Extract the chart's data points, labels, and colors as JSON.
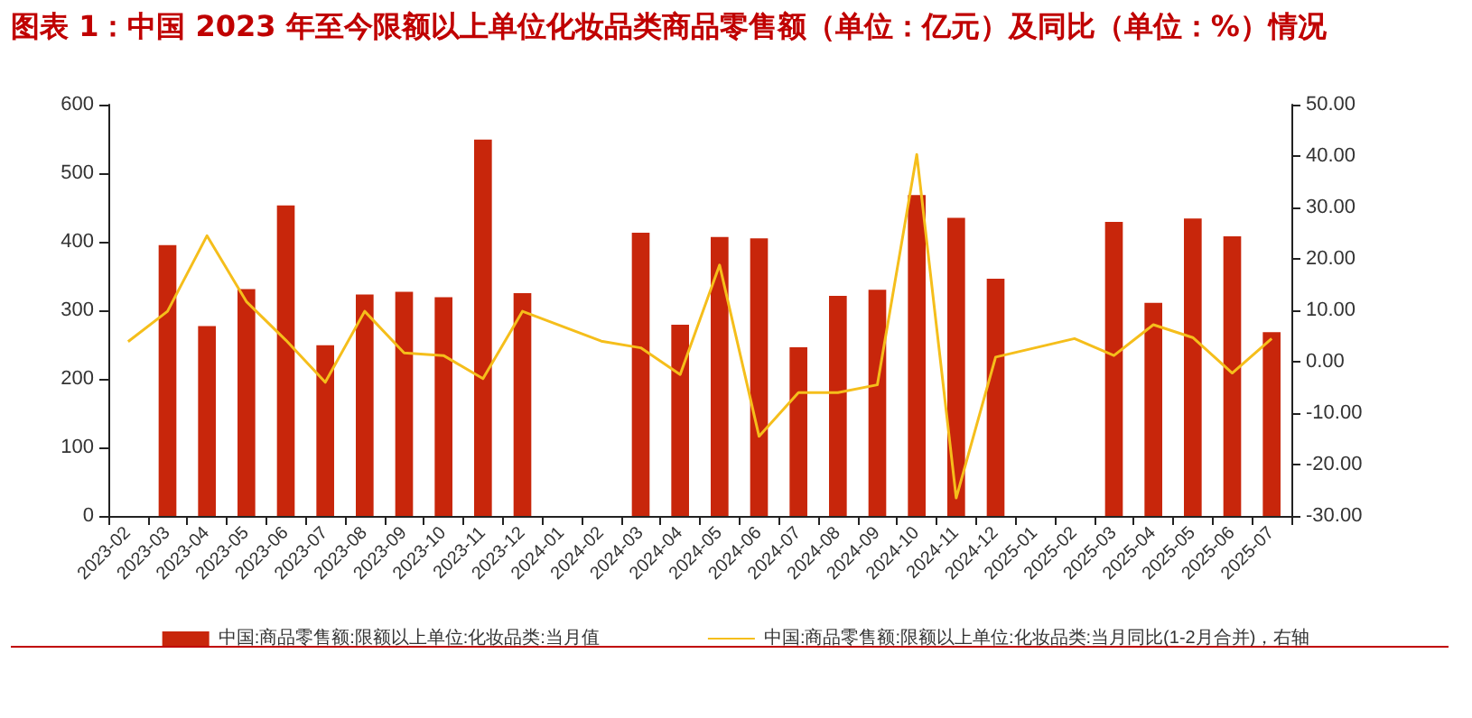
{
  "chart_data": {
    "type": "bar",
    "title": "图表 1：中国 2023 年至今限额以上单位化妆品类商品零售额（单位：亿元）及同比（单位：%）情况",
    "categories": [
      "2023-02",
      "2023-03",
      "2023-04",
      "2023-05",
      "2023-06",
      "2023-07",
      "2023-08",
      "2023-09",
      "2023-10",
      "2023-11",
      "2023-12",
      "2024-01",
      "2024-02",
      "2024-03",
      "2024-04",
      "2024-05",
      "2024-06",
      "2024-07",
      "2024-08",
      "2024-09",
      "2024-10",
      "2024-11",
      "2024-12",
      "2025-01",
      "2025-02",
      "2025-03",
      "2025-04",
      "2025-05",
      "2025-06",
      "2025-07"
    ],
    "series": [
      {
        "name": "中国:商品零售额:限额以上单位:化妆品类:当月值",
        "color": "#c8260b",
        "values": [
          null,
          395,
          277,
          331,
          453,
          249,
          323,
          327,
          319,
          549,
          325,
          null,
          null,
          413,
          279,
          407,
          405,
          246,
          321,
          330,
          468,
          435,
          346,
          null,
          null,
          429,
          311,
          434,
          408,
          268
        ]
      },
      {
        "name": "中国:商品零售额:限额以上单位:化妆品类:当月同比(1-2月合并)，右轴",
        "type": "line",
        "axis": "y2",
        "color": "#f5be1b",
        "values": [
          3.9,
          9.8,
          24.5,
          11.7,
          4.2,
          -4.0,
          9.8,
          1.7,
          1.2,
          -3.3,
          9.8,
          null,
          4.0,
          2.7,
          -2.5,
          18.8,
          -14.5,
          -6.0,
          -6.0,
          -4.5,
          40.3,
          -26.5,
          0.9,
          null,
          4.5,
          1.2,
          7.2,
          4.7,
          -2.2,
          4.5
        ]
      }
    ],
    "ylim": [
      0,
      600
    ],
    "yticks": [
      0,
      100,
      200,
      300,
      400,
      500,
      600
    ],
    "y2lim": [
      -30,
      50
    ],
    "y2ticks": [
      {
        "value": -30,
        "label": "-30.00"
      },
      {
        "value": -20,
        "label": "-20.00"
      },
      {
        "value": -10,
        "label": "-10.00"
      },
      {
        "value": 0,
        "label": "0.00"
      },
      {
        "value": 10,
        "label": "10.00"
      },
      {
        "value": 20,
        "label": "20.00"
      },
      {
        "value": 30,
        "label": "30.00"
      },
      {
        "value": 40,
        "label": "40.00"
      },
      {
        "value": 50,
        "label": "50.00"
      }
    ],
    "grid": false,
    "legend": "bottom",
    "marker": "none",
    "line_style": "solid"
  }
}
